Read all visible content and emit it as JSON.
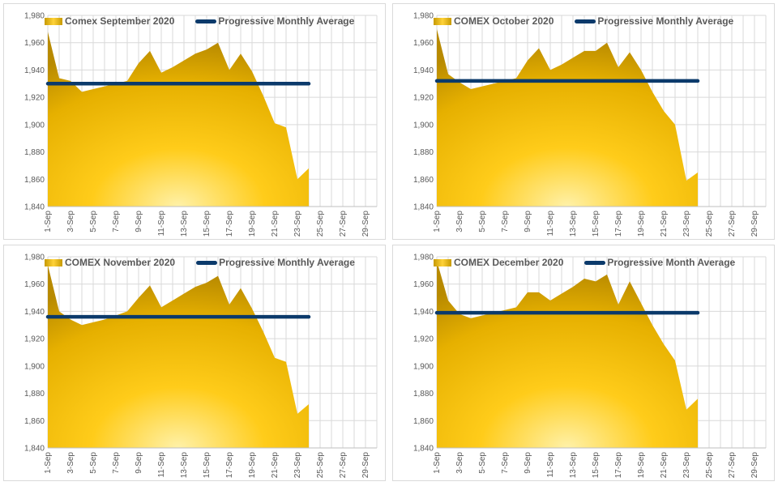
{
  "colors": {
    "area_fill": "#F2C10E",
    "average_line": "#0B3A6B",
    "grid": "#D9D9D9",
    "text": "#595959"
  },
  "chart_data": [
    {
      "type": "area",
      "legend": [
        "Comex September 2020",
        "Progressive Monthly Average"
      ],
      "x_ticks": [
        "1-Sep",
        "3-Sep",
        "5-Sep",
        "7-Sep",
        "9-Sep",
        "11-Sep",
        "13-Sep",
        "15-Sep",
        "17-Sep",
        "19-Sep",
        "21-Sep",
        "23-Sep",
        "25-Sep",
        "27-Sep",
        "29-Sep"
      ],
      "y_ticks": [
        "1,840",
        "1,860",
        "1,880",
        "1,900",
        "1,920",
        "1,940",
        "1,960",
        "1,980"
      ],
      "ylim": [
        1840,
        1980
      ],
      "xlim": [
        "1-Sep",
        "30-Sep"
      ],
      "x": [
        "1-Sep",
        "2-Sep",
        "3-Sep",
        "4-Sep",
        "5-Sep",
        "6-Sep",
        "7-Sep",
        "8-Sep",
        "9-Sep",
        "10-Sep",
        "11-Sep",
        "12-Sep",
        "13-Sep",
        "14-Sep",
        "15-Sep",
        "16-Sep",
        "17-Sep",
        "18-Sep",
        "19-Sep",
        "20-Sep",
        "21-Sep",
        "22-Sep",
        "23-Sep",
        "24-Sep"
      ],
      "series": [
        {
          "name": "Comex September 2020",
          "values": [
            1968,
            1934,
            1932,
            1924,
            1926,
            1928,
            1930,
            1932,
            1945,
            1954,
            1938,
            1942,
            1947,
            1952,
            1955,
            1960,
            1940,
            1952,
            1939,
            1921,
            1901,
            1898,
            1860,
            1868
          ]
        },
        {
          "name": "Progressive Monthly Average",
          "values": [
            1930,
            1930,
            1930,
            1930,
            1930,
            1930,
            1930,
            1930,
            1930,
            1930,
            1930,
            1930,
            1930,
            1930,
            1930,
            1930,
            1930,
            1930,
            1930,
            1930,
            1930,
            1930,
            1930,
            1930
          ]
        }
      ]
    },
    {
      "type": "area",
      "legend": [
        "COMEX October 2020",
        "Progressive Monthly Average"
      ],
      "x_ticks": [
        "1-Sep",
        "3-Sep",
        "5-Sep",
        "7-Sep",
        "9-Sep",
        "11-Sep",
        "13-Sep",
        "15-Sep",
        "17-Sep",
        "19-Sep",
        "21-Sep",
        "23-Sep",
        "25-Sep",
        "27-Sep",
        "29-Sep"
      ],
      "y_ticks": [
        "1,840",
        "1,860",
        "1,880",
        "1,900",
        "1,920",
        "1,940",
        "1,960",
        "1,980"
      ],
      "ylim": [
        1840,
        1980
      ],
      "xlim": [
        "1-Sep",
        "30-Sep"
      ],
      "x": [
        "1-Sep",
        "2-Sep",
        "3-Sep",
        "4-Sep",
        "5-Sep",
        "6-Sep",
        "7-Sep",
        "8-Sep",
        "9-Sep",
        "10-Sep",
        "11-Sep",
        "12-Sep",
        "13-Sep",
        "14-Sep",
        "15-Sep",
        "16-Sep",
        "17-Sep",
        "18-Sep",
        "19-Sep",
        "20-Sep",
        "21-Sep",
        "22-Sep",
        "23-Sep",
        "24-Sep"
      ],
      "series": [
        {
          "name": "COMEX October 2020",
          "values": [
            1970,
            1937,
            1931,
            1926,
            1928,
            1930,
            1932,
            1934,
            1947,
            1956,
            1940,
            1944,
            1949,
            1954,
            1954,
            1960,
            1942,
            1953,
            1940,
            1924,
            1910,
            1900,
            1859,
            1865
          ]
        },
        {
          "name": "Progressive Monthly Average",
          "values": [
            1932,
            1932,
            1932,
            1932,
            1932,
            1932,
            1932,
            1932,
            1932,
            1932,
            1932,
            1932,
            1932,
            1932,
            1932,
            1932,
            1932,
            1932,
            1932,
            1932,
            1932,
            1932,
            1932,
            1932
          ]
        }
      ]
    },
    {
      "type": "area",
      "legend": [
        "COMEX November 2020",
        "Progressive Monthly Average"
      ],
      "x_ticks": [
        "1-Sep",
        "3-Sep",
        "5-Sep",
        "7-Sep",
        "9-Sep",
        "11-Sep",
        "13-Sep",
        "15-Sep",
        "17-Sep",
        "19-Sep",
        "21-Sep",
        "23-Sep",
        "25-Sep",
        "27-Sep",
        "29-Sep"
      ],
      "y_ticks": [
        "1,840",
        "1,860",
        "1,880",
        "1,900",
        "1,920",
        "1,940",
        "1,960",
        "1,980"
      ],
      "ylim": [
        1840,
        1980
      ],
      "xlim": [
        "1-Sep",
        "30-Sep"
      ],
      "x": [
        "1-Sep",
        "2-Sep",
        "3-Sep",
        "4-Sep",
        "5-Sep",
        "6-Sep",
        "7-Sep",
        "8-Sep",
        "9-Sep",
        "10-Sep",
        "11-Sep",
        "12-Sep",
        "13-Sep",
        "14-Sep",
        "15-Sep",
        "16-Sep",
        "17-Sep",
        "18-Sep",
        "19-Sep",
        "20-Sep",
        "21-Sep",
        "22-Sep",
        "23-Sep",
        "24-Sep"
      ],
      "series": [
        {
          "name": "COMEX November 2020",
          "values": [
            1974,
            1940,
            1934,
            1930,
            1932,
            1934,
            1937,
            1940,
            1950,
            1959,
            1943,
            1948,
            1953,
            1958,
            1961,
            1966,
            1945,
            1957,
            1942,
            1925,
            1906,
            1903,
            1865,
            1872
          ]
        },
        {
          "name": "Progressive Monthly Average",
          "values": [
            1936,
            1936,
            1936,
            1936,
            1936,
            1936,
            1936,
            1936,
            1936,
            1936,
            1936,
            1936,
            1936,
            1936,
            1936,
            1936,
            1936,
            1936,
            1936,
            1936,
            1936,
            1936,
            1936,
            1936
          ]
        }
      ]
    },
    {
      "type": "area",
      "legend": [
        "COMEX December 2020",
        "Progressive Month Average"
      ],
      "x_ticks": [
        "1-Sep",
        "3-Sep",
        "5-Sep",
        "7-Sep",
        "9-Sep",
        "11-Sep",
        "13-Sep",
        "15-Sep",
        "17-Sep",
        "19-Sep",
        "21-Sep",
        "23-Sep",
        "25-Sep",
        "27-Sep",
        "29-Sep"
      ],
      "y_ticks": [
        "1,840",
        "1,860",
        "1,880",
        "1,900",
        "1,920",
        "1,940",
        "1,960",
        "1,980"
      ],
      "ylim": [
        1840,
        1980
      ],
      "xlim": [
        "1-Sep",
        "30-Sep"
      ],
      "x": [
        "1-Sep",
        "2-Sep",
        "3-Sep",
        "4-Sep",
        "5-Sep",
        "6-Sep",
        "7-Sep",
        "8-Sep",
        "9-Sep",
        "10-Sep",
        "11-Sep",
        "12-Sep",
        "13-Sep",
        "14-Sep",
        "15-Sep",
        "16-Sep",
        "17-Sep",
        "18-Sep",
        "19-Sep",
        "20-Sep",
        "21-Sep",
        "22-Sep",
        "23-Sep",
        "24-Sep"
      ],
      "series": [
        {
          "name": "COMEX December 2020",
          "values": [
            1977,
            1948,
            1938,
            1935,
            1937,
            1939,
            1941,
            1943,
            1954,
            1954,
            1948,
            1953,
            1958,
            1964,
            1962,
            1967,
            1945,
            1962,
            1946,
            1930,
            1916,
            1904,
            1868,
            1876
          ]
        },
        {
          "name": "Progressive Month Average",
          "values": [
            1939,
            1939,
            1939,
            1939,
            1939,
            1939,
            1939,
            1939,
            1939,
            1939,
            1939,
            1939,
            1939,
            1939,
            1939,
            1939,
            1939,
            1939,
            1939,
            1939,
            1939,
            1939,
            1939,
            1939
          ]
        }
      ]
    }
  ]
}
